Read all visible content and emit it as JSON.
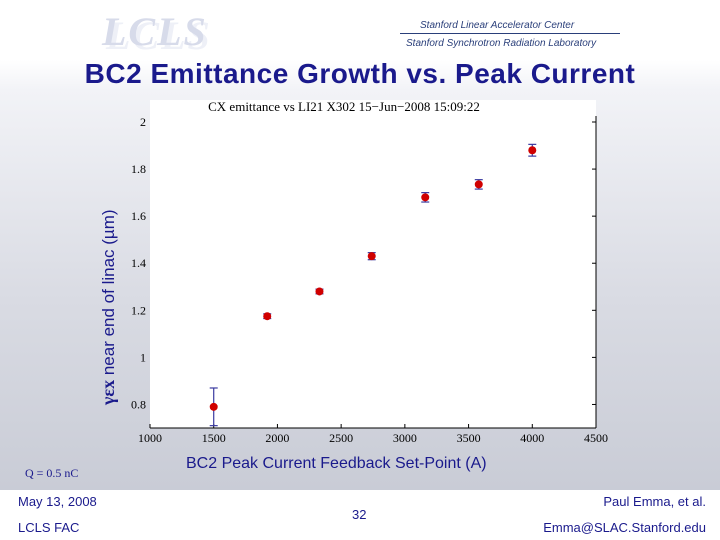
{
  "header": {
    "logo_text": "LCLS",
    "org_line1": "Stanford Linear Accelerator Center",
    "org_line2": "Stanford Synchrotron Radiation Laboratory"
  },
  "slide": {
    "title": "BC2 Emittance Growth vs. Peak Current",
    "ylabel_symbol": "γεx",
    "ylabel_text": " near end of linac (µm)",
    "xlabel": "BC2 Peak Current Feedback Set-Point (A)",
    "charge_note": "Q = 0.5 nC"
  },
  "footer": {
    "date": "May 13, 2008",
    "facility": "LCLS FAC",
    "page": "32",
    "author": "Paul Emma, et al.",
    "email": "Emma@SLAC.Stanford.edu"
  },
  "chart_data": {
    "type": "scatter",
    "title": "CX emittance vs LI21 X302 15−Jun−2008 15:09:22",
    "xlabel": "BC2 Peak Current Feedback Set-Point (A)",
    "ylabel": "γεx near end of linac (µm)",
    "xlim": [
      1000,
      4500
    ],
    "ylim": [
      0.7,
      2.0
    ],
    "x_ticks": [
      1000,
      1500,
      2000,
      2500,
      3000,
      3500,
      4000,
      4500
    ],
    "y_ticks": [
      0.8,
      1,
      1.2,
      1.4,
      1.6,
      1.8,
      2
    ],
    "y_tick_labels": [
      "0.8",
      "1",
      "1.2",
      "1.4",
      "1.6",
      "1.8",
      "2"
    ],
    "x": [
      1500,
      1920,
      2330,
      2740,
      3160,
      3580,
      4000
    ],
    "y": [
      0.79,
      1.175,
      1.28,
      1.43,
      1.68,
      1.735,
      1.88
    ],
    "yerr": [
      0.08,
      0.01,
      0.01,
      0.015,
      0.02,
      0.02,
      0.025
    ],
    "colors": {
      "marker": "#d00000",
      "errorbar": "#3a3aa0",
      "axis": "#000000"
    }
  }
}
